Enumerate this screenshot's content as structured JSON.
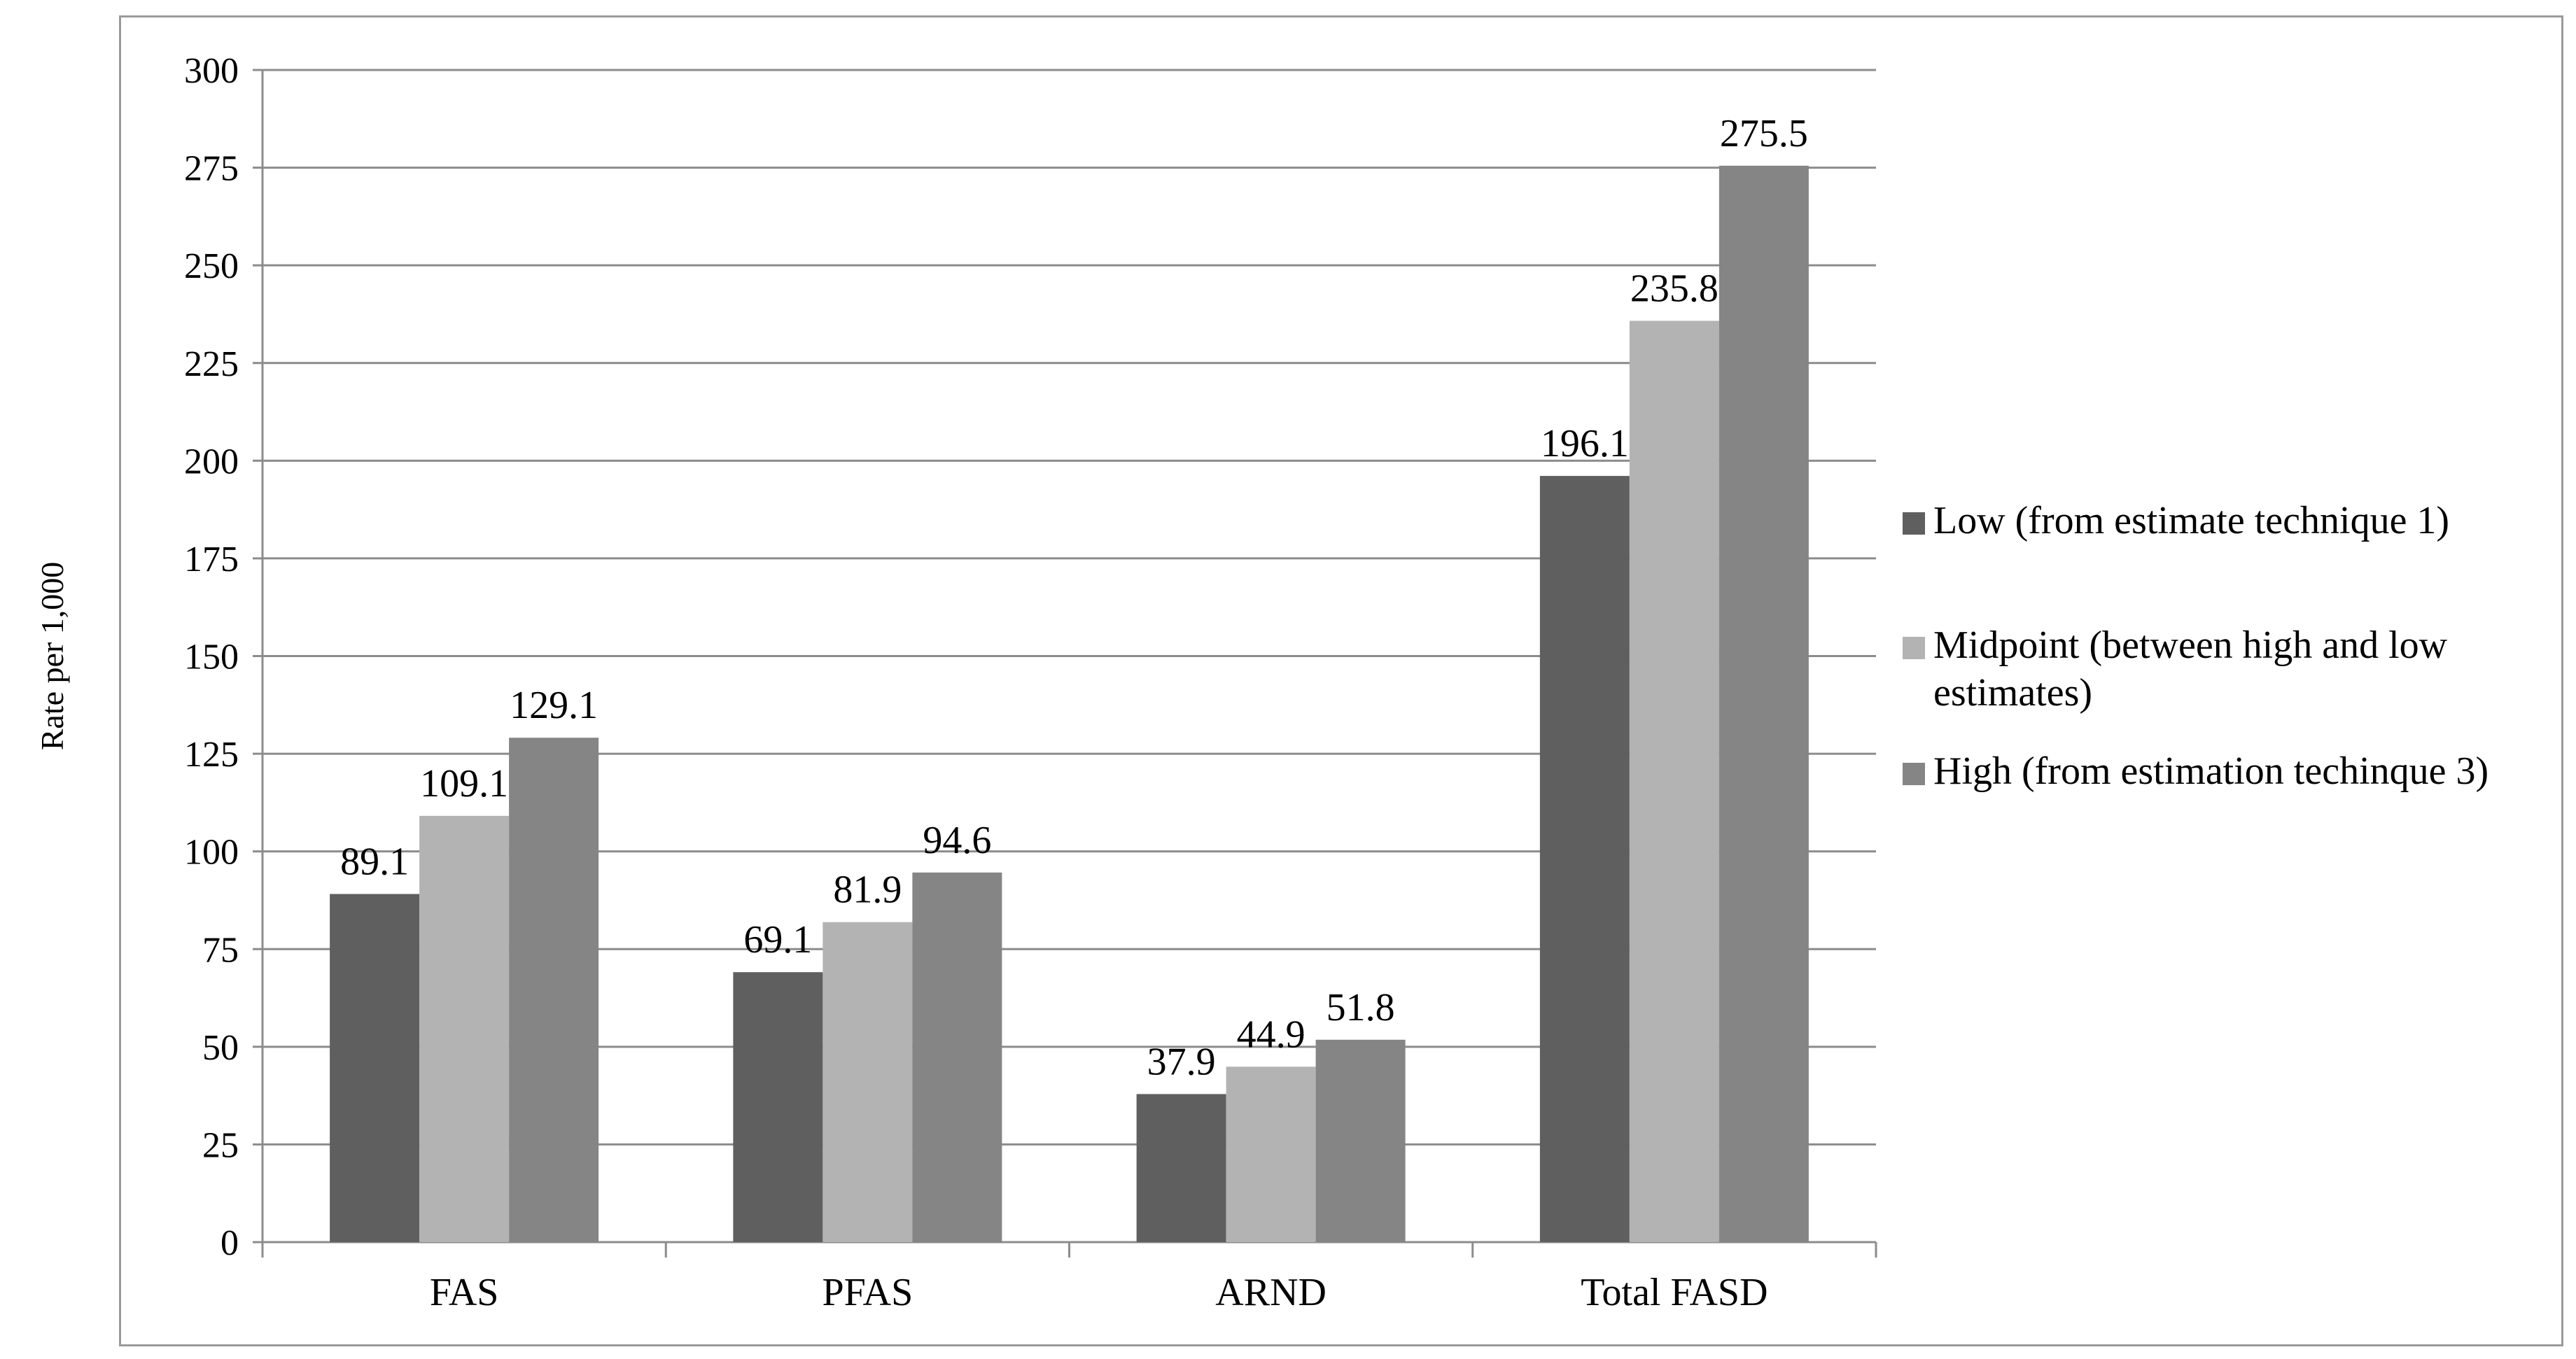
{
  "chart_data": {
    "type": "bar",
    "title": "",
    "xlabel": "",
    "ylabel": "Rate per 1,000",
    "ylim": [
      0,
      300
    ],
    "yticks": [
      0,
      25,
      50,
      75,
      100,
      125,
      150,
      175,
      200,
      225,
      250,
      275,
      300
    ],
    "grid": true,
    "legend_position": "right",
    "categories": [
      "FAS",
      "PFAS",
      "ARND",
      "Total FASD"
    ],
    "series": [
      {
        "name": "Low (from estimate technique 1)",
        "values": [
          89.1,
          69.1,
          37.9,
          196.1
        ],
        "color": "#5f5f5f"
      },
      {
        "name": "Midpoint (between high and low estimates)",
        "values": [
          109.1,
          81.9,
          44.9,
          235.8
        ],
        "color": "#b3b3b3"
      },
      {
        "name": "High (from estimation techinque 3)",
        "values": [
          129.1,
          94.6,
          51.8,
          275.5
        ],
        "color": "#858585"
      }
    ],
    "data_labels": [
      [
        "89.1",
        "69.1",
        "37.9",
        "196.1"
      ],
      [
        "109.1",
        "81.9",
        "44.9",
        "235.8"
      ],
      [
        "129.1",
        "94.6",
        "51.8",
        "275.5"
      ]
    ],
    "legend_lines": [
      [
        "Low (from estimate technique 1)"
      ],
      [
        "Midpoint (between high and low",
        "estimates)"
      ],
      [
        "High (from estimation techinque 3)"
      ]
    ]
  }
}
